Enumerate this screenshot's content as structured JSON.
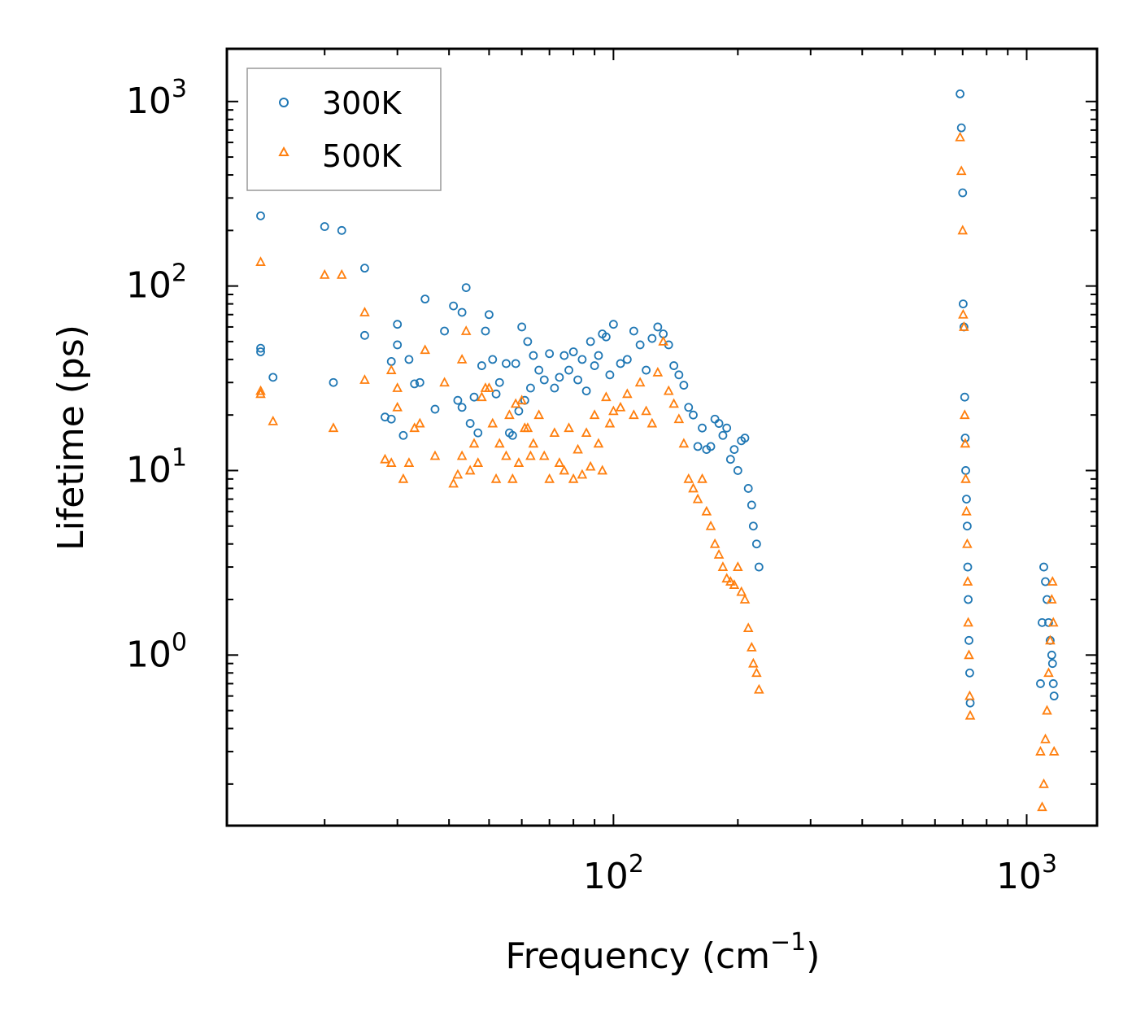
{
  "chart_data": {
    "type": "scatter",
    "title": "",
    "xlabel": "Frequency (cm",
    "xlabel_sup": "−1",
    "xlabel_close": ")",
    "ylabel": "Lifetime (ps)",
    "xscale": "log",
    "yscale": "log",
    "xlim": [
      11.6,
      1480
    ],
    "ylim": [
      0.119,
      1930
    ],
    "legend_position": "top-left",
    "x_ticks": [
      {
        "value": 100,
        "base": "10",
        "exp": "2"
      },
      {
        "value": 1000,
        "base": "10",
        "exp": "3"
      }
    ],
    "y_ticks": [
      {
        "value": 1,
        "base": "10",
        "exp": "0"
      },
      {
        "value": 10,
        "base": "10",
        "exp": "1"
      },
      {
        "value": 100,
        "base": "10",
        "exp": "2"
      },
      {
        "value": 1000,
        "base": "10",
        "exp": "3"
      }
    ],
    "series": [
      {
        "name": "300K",
        "marker": "circle",
        "color": "#1f77b4",
        "x": [
          14,
          14,
          14,
          15,
          20,
          21,
          22,
          25,
          25,
          28,
          29,
          29,
          30,
          30,
          31,
          32,
          33,
          34,
          35,
          37,
          39,
          41,
          42,
          43,
          43,
          44,
          45,
          46,
          47,
          48,
          49,
          50,
          51,
          52,
          53,
          55,
          56,
          57,
          58,
          59,
          60,
          61,
          62,
          63,
          64,
          66,
          68,
          70,
          72,
          74,
          76,
          78,
          80,
          82,
          84,
          86,
          88,
          90,
          92,
          94,
          96,
          98,
          100,
          104,
          108,
          112,
          116,
          120,
          124,
          128,
          132,
          136,
          140,
          144,
          148,
          152,
          156,
          160,
          164,
          168,
          172,
          176,
          180,
          184,
          188,
          192,
          196,
          200,
          204,
          208,
          212,
          216,
          218,
          222,
          225,
          690,
          695,
          700,
          702,
          705,
          708,
          710,
          712,
          715,
          718,
          720,
          722,
          725,
          728,
          730,
          1080,
          1090,
          1100,
          1110,
          1120,
          1130,
          1140,
          1150,
          1155,
          1160,
          1165
        ],
        "y": [
          240,
          46,
          44,
          32,
          210,
          30,
          200,
          125,
          54,
          19.5,
          19,
          39,
          48,
          62,
          15.5,
          40,
          29.5,
          30,
          85,
          21.5,
          57,
          78,
          24,
          22,
          72,
          98,
          18,
          25,
          16,
          37,
          57,
          70,
          40,
          26,
          30,
          38,
          16,
          15.5,
          38,
          21,
          60,
          24,
          50,
          28,
          42,
          35,
          31,
          43,
          28,
          32,
          42,
          35,
          44,
          31,
          40,
          27,
          50,
          37,
          42,
          55,
          53,
          33,
          62,
          38,
          40,
          57,
          48,
          35,
          52,
          60,
          55,
          48,
          37,
          33,
          29,
          22,
          20,
          13.5,
          17,
          13,
          13.5,
          19,
          18,
          15.5,
          17,
          11.5,
          13,
          10,
          14.5,
          15,
          8,
          6.5,
          5,
          4,
          3,
          1100,
          720,
          320,
          80,
          60,
          25,
          15,
          10,
          7,
          5,
          3,
          2,
          1.2,
          0.8,
          0.55,
          0.7,
          1.5,
          3,
          2.5,
          2,
          1.5,
          1.2,
          1,
          0.9,
          0.7,
          0.6
        ]
      },
      {
        "name": "500K",
        "marker": "triangle",
        "color": "#ff7f0e",
        "x": [
          14,
          14,
          14,
          15,
          20,
          21,
          22,
          25,
          25,
          28,
          29,
          29,
          30,
          30,
          31,
          32,
          33,
          34,
          35,
          37,
          39,
          41,
          42,
          43,
          43,
          44,
          45,
          46,
          47,
          48,
          49,
          50,
          51,
          52,
          53,
          55,
          56,
          57,
          58,
          59,
          60,
          61,
          62,
          63,
          64,
          66,
          68,
          70,
          72,
          74,
          76,
          78,
          80,
          82,
          84,
          86,
          88,
          90,
          92,
          94,
          96,
          98,
          100,
          104,
          108,
          112,
          116,
          120,
          124,
          128,
          132,
          136,
          140,
          144,
          148,
          152,
          156,
          160,
          164,
          168,
          172,
          176,
          180,
          184,
          188,
          192,
          196,
          200,
          204,
          208,
          212,
          216,
          218,
          222,
          225,
          690,
          695,
          700,
          702,
          705,
          708,
          710,
          712,
          715,
          718,
          720,
          722,
          725,
          728,
          730,
          1080,
          1090,
          1100,
          1110,
          1120,
          1130,
          1140,
          1150,
          1155,
          1160,
          1165
        ],
        "y": [
          135,
          27,
          26,
          18.5,
          115,
          17,
          115,
          72,
          31,
          11.5,
          11,
          35,
          22,
          28,
          9,
          11,
          17,
          18,
          45,
          12,
          30,
          8.5,
          9.5,
          12,
          40,
          57,
          10,
          14,
          11,
          25,
          28,
          28,
          18,
          9,
          14,
          12,
          20,
          9,
          23,
          11,
          24,
          17,
          17,
          12,
          14,
          20,
          12,
          9,
          16,
          11,
          10,
          17,
          9,
          13,
          9.5,
          16,
          10.5,
          20,
          14,
          10,
          25,
          18,
          21,
          22,
          26,
          20,
          30,
          21,
          18,
          34,
          50,
          27,
          23,
          19,
          14,
          9,
          8,
          7,
          9,
          6,
          5,
          4,
          3.5,
          3,
          2.6,
          2.5,
          2.4,
          3,
          2.2,
          2,
          1.4,
          1.1,
          0.9,
          0.8,
          0.65,
          640,
          420,
          200,
          70,
          60,
          20,
          14,
          9,
          6,
          4,
          2.5,
          1.5,
          1,
          0.6,
          0.47,
          0.3,
          0.15,
          0.2,
          0.35,
          0.5,
          0.8,
          1.2,
          2,
          2.5,
          1.5,
          0.3
        ]
      }
    ]
  }
}
